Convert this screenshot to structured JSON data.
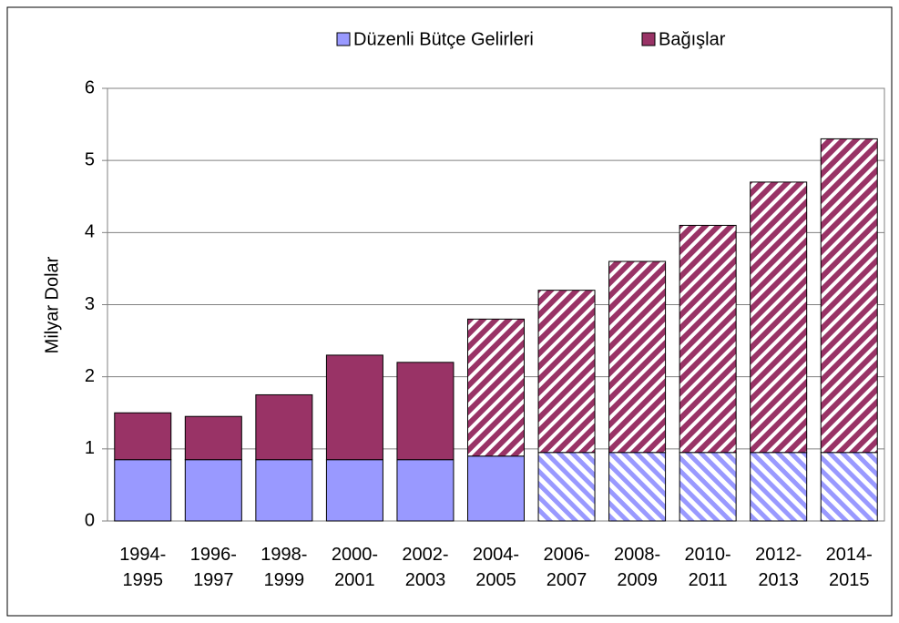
{
  "chart_data": {
    "type": "stacked_bar",
    "y_label": "Milyar Dolar",
    "categories": [
      "1994-1995",
      "1996-1997",
      "1998-1999",
      "2000-2001",
      "2002-2003",
      "2004-2005",
      "2006-2007",
      "2008-2009",
      "2010-2011",
      "2012-2013",
      "2014-2015"
    ],
    "series": [
      {
        "name": "Düzenli Bütçe Gelirleri",
        "color": "#9999ff",
        "values": [
          0.85,
          0.85,
          0.85,
          0.85,
          0.85,
          0.9,
          0.95,
          0.95,
          0.95,
          0.95,
          0.95
        ],
        "hatched": [
          false,
          false,
          false,
          false,
          false,
          false,
          true,
          true,
          true,
          true,
          true
        ]
      },
      {
        "name": "Bağışlar",
        "color": "#993366",
        "values": [
          0.65,
          0.6,
          0.9,
          1.45,
          1.35,
          1.9,
          2.25,
          2.65,
          3.15,
          3.75,
          4.35
        ],
        "hatched": [
          false,
          false,
          false,
          false,
          false,
          true,
          true,
          true,
          true,
          true,
          true
        ]
      }
    ],
    "ylim": [
      0,
      6
    ],
    "yticks": [
      0,
      1,
      2,
      3,
      4,
      5,
      6
    ],
    "grid": true,
    "legend": "top"
  }
}
